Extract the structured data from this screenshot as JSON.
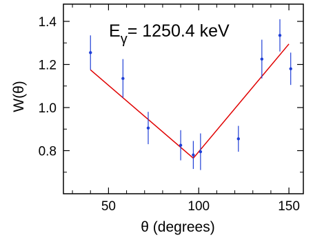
{
  "chart_data": {
    "type": "scatter",
    "xlabel": "θ (degrees)",
    "ylabel": "W(θ)",
    "xlim": [
      25,
      158
    ],
    "ylim": [
      0.6,
      1.48
    ],
    "xticks_major": [
      50,
      100,
      150
    ],
    "xticks_minor": [
      30,
      40,
      60,
      70,
      80,
      90,
      110,
      120,
      130,
      140
    ],
    "yticks_major": [
      0.8,
      1.0,
      1.2,
      1.4
    ],
    "yticks_minor": [
      0.7,
      0.9,
      1.1,
      1.3
    ],
    "xtick_labels": [
      "50",
      "100",
      "150"
    ],
    "ytick_labels": [
      "0.8",
      "1.0",
      "1.2",
      "1.4"
    ],
    "annotation": {
      "prefix": "E",
      "subscript": "γ",
      "value_text": "= 1250.4 keV"
    },
    "grid": false,
    "points": [
      {
        "x": 40,
        "y": 1.255,
        "err": 0.08
      },
      {
        "x": 58,
        "y": 1.135,
        "err": 0.09
      },
      {
        "x": 72,
        "y": 0.905,
        "err": 0.075
      },
      {
        "x": 90,
        "y": 0.825,
        "err": 0.07
      },
      {
        "x": 97,
        "y": 0.78,
        "err": 0.065
      },
      {
        "x": 101,
        "y": 0.795,
        "err": 0.085
      },
      {
        "x": 122,
        "y": 0.855,
        "err": 0.06
      },
      {
        "x": 135,
        "y": 1.225,
        "err": 0.09
      },
      {
        "x": 145,
        "y": 1.335,
        "err": 0.075
      },
      {
        "x": 151,
        "y": 1.18,
        "err": 0.075
      }
    ],
    "fit": {
      "x": [
        40,
        97,
        150
      ],
      "y": [
        1.175,
        0.765,
        1.295
      ]
    },
    "colors": {
      "points": "#1f3fd6",
      "fit": "#e00000",
      "axes": "#000000"
    }
  }
}
